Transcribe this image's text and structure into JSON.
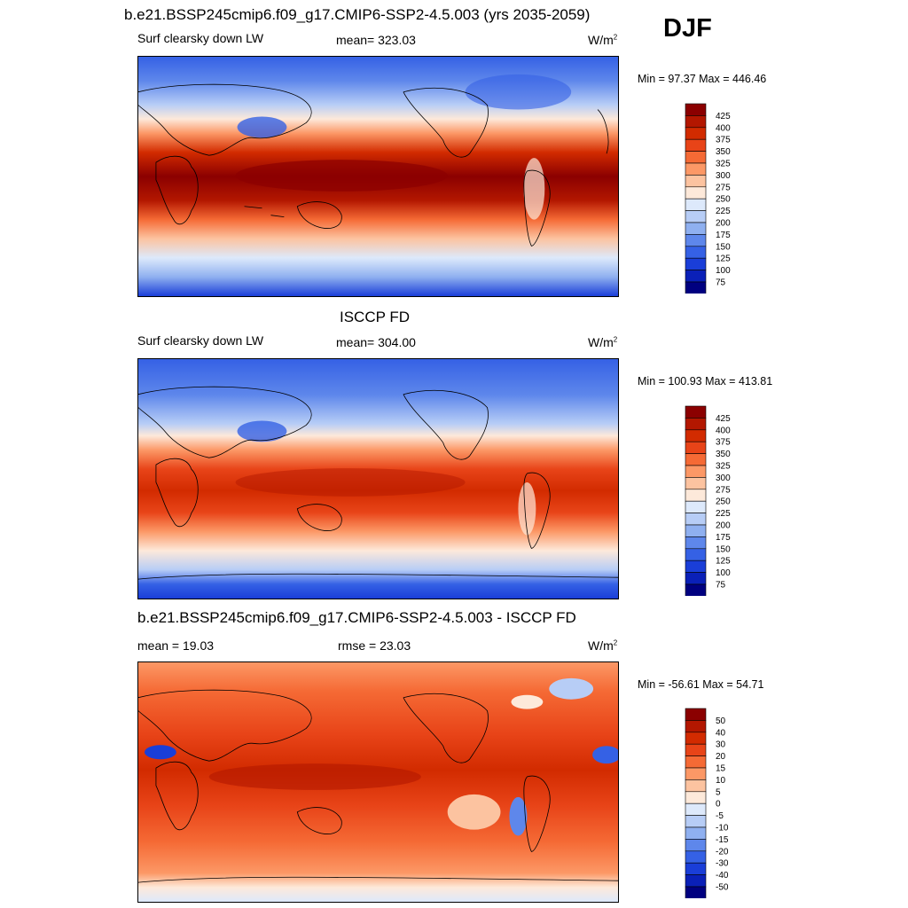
{
  "season": "DJF",
  "panels": [
    {
      "title": "b.e21.BSSP245cmip6.f09_g17.CMIP6-SSP2-4.5.003 (yrs 2035-2059)",
      "variable": "Surf clearsky down LW",
      "stat_left": "",
      "stat_center": "mean= 323.03",
      "units": "W/m",
      "units_sup": "2",
      "range": "Min =  97.37 Max = 446.46",
      "colorbar": {
        "labels": [
          "425",
          "400",
          "375",
          "350",
          "325",
          "300",
          "275",
          "250",
          "225",
          "200",
          "175",
          "150",
          "125",
          "100",
          "75"
        ],
        "colors": [
          "#8b0000",
          "#b31700",
          "#d22b00",
          "#e84418",
          "#f56a35",
          "#fc9866",
          "#fcc3a0",
          "#fde9da",
          "#dde9fb",
          "#b7cdf6",
          "#8fb0f0",
          "#5e87eb",
          "#3561e5",
          "#1a3ed8",
          "#0a20b8",
          "#000080"
        ]
      }
    },
    {
      "title": "ISCCP FD",
      "variable": "Surf clearsky down LW",
      "stat_left": "",
      "stat_center": "mean= 304.00",
      "units": "W/m",
      "units_sup": "2",
      "range": "Min = 100.93 Max = 413.81",
      "colorbar": {
        "labels": [
          "425",
          "400",
          "375",
          "350",
          "325",
          "300",
          "275",
          "250",
          "225",
          "200",
          "175",
          "150",
          "125",
          "100",
          "75"
        ],
        "colors": [
          "#8b0000",
          "#b31700",
          "#d22b00",
          "#e84418",
          "#f56a35",
          "#fc9866",
          "#fcc3a0",
          "#fde9da",
          "#dde9fb",
          "#b7cdf6",
          "#8fb0f0",
          "#5e87eb",
          "#3561e5",
          "#1a3ed8",
          "#0a20b8",
          "#000080"
        ]
      }
    },
    {
      "title": "b.e21.BSSP245cmip6.f09_g17.CMIP6-SSP2-4.5.003 - ISCCP FD",
      "variable": "",
      "stat_left": "mean =  19.03",
      "stat_center": "rmse =  23.03",
      "units": "W/m",
      "units_sup": "2",
      "range": "Min = -56.61 Max =  54.71",
      "colorbar": {
        "labels": [
          "50",
          "40",
          "30",
          "20",
          "15",
          "10",
          "5",
          "0",
          "-5",
          "-10",
          "-15",
          "-20",
          "-30",
          "-40",
          "-50"
        ],
        "colors": [
          "#8b0000",
          "#b31700",
          "#d22b00",
          "#e84418",
          "#f56a35",
          "#fc9866",
          "#fcc3a0",
          "#fde9da",
          "#dde9fb",
          "#b7cdf6",
          "#8fb0f0",
          "#5e87eb",
          "#3561e5",
          "#1a3ed8",
          "#0a20b8",
          "#000080"
        ]
      }
    }
  ]
}
